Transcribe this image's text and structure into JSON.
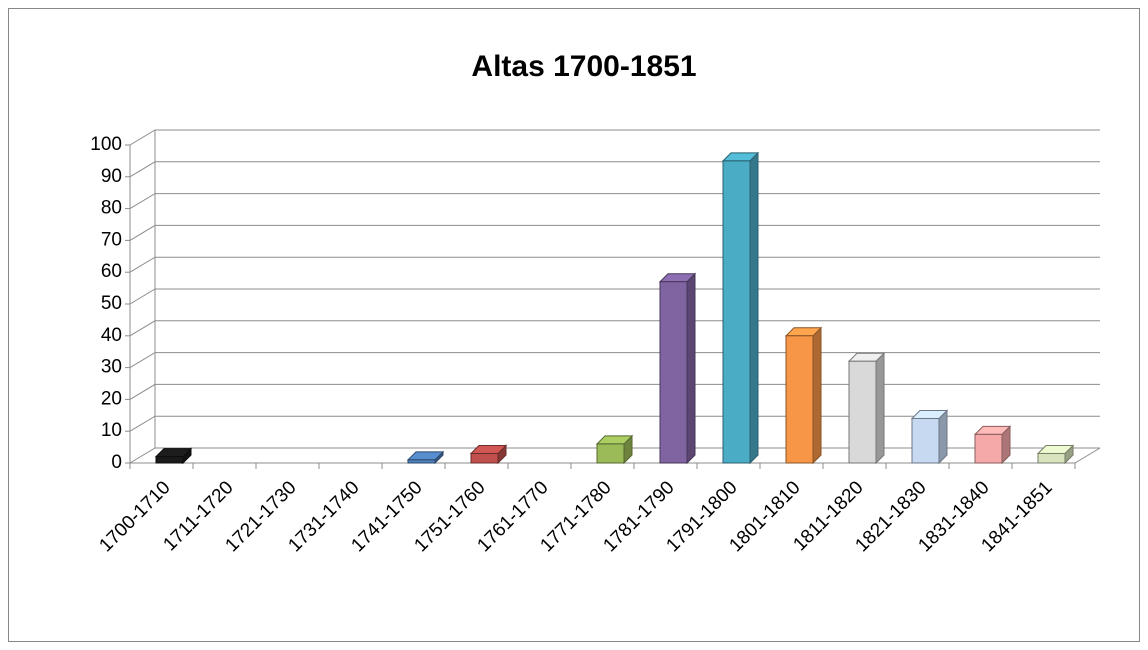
{
  "chart_data": {
    "type": "bar",
    "title": "Altas 1700-1851",
    "categories": [
      "1700-1710",
      "1711-1720",
      "1721-1730",
      "1731-1740",
      "1741-1750",
      "1751-1760",
      "1761-1770",
      "1771-1780",
      "1781-1790",
      "1791-1800",
      "1801-1810",
      "1811-1820",
      "1821-1830",
      "1831-1840",
      "1841-1851"
    ],
    "values": [
      2,
      0,
      0,
      0,
      1,
      3,
      0,
      6,
      57,
      95,
      40,
      32,
      14,
      9,
      3
    ],
    "colors": [
      "#1a1a1a",
      "#c0504d",
      "#9bbb59",
      "#8064a2",
      "#4f81bd",
      "#c0504d",
      "#f79646",
      "#9bbb59",
      "#8064a2",
      "#4bacc6",
      "#f79646",
      "#d9d9d9",
      "#c6d9f1",
      "#f5a9a9",
      "#d7e4bd"
    ],
    "ylim": [
      0,
      100
    ],
    "yticks": [
      0,
      10,
      20,
      30,
      40,
      50,
      60,
      70,
      80,
      90,
      100
    ],
    "grid": true
  }
}
